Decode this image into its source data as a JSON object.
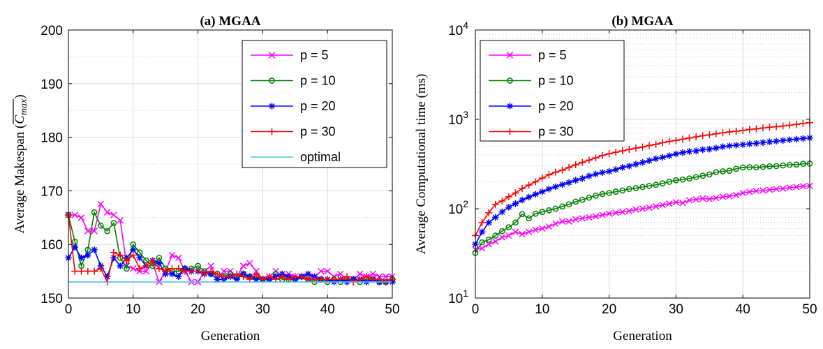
{
  "chart_data": [
    {
      "type": "line",
      "title": "(a) MGAA",
      "xlabel": "Generation",
      "ylabel_prefix": "Average Makespan (",
      "ylabel_math": "C",
      "ylabel_sub": "max",
      "ylabel_suffix": ")",
      "xlim": [
        0,
        50
      ],
      "ylim": [
        150,
        200
      ],
      "x_ticks": [
        0,
        10,
        20,
        30,
        40,
        50
      ],
      "y_ticks": [
        150,
        160,
        170,
        180,
        190,
        200
      ],
      "y_tick_labels": [
        "150",
        "160",
        "170",
        "180",
        "190",
        "200"
      ],
      "grid": "on",
      "legend_position": "top-right",
      "series": [
        {
          "name": "p = 5",
          "color": "#ff00ff",
          "marker": "x",
          "x": [
            0,
            1,
            2,
            3,
            4,
            5,
            6,
            7,
            8,
            9,
            10,
            11,
            12,
            13,
            14,
            15,
            16,
            17,
            18,
            19,
            20,
            21,
            22,
            23,
            24,
            25,
            26,
            27,
            28,
            29,
            30,
            31,
            32,
            33,
            34,
            35,
            36,
            37,
            38,
            39,
            40,
            41,
            42,
            43,
            44,
            45,
            46,
            47,
            48,
            49,
            50
          ],
          "y": [
            165.5,
            165.5,
            165,
            162.5,
            162.5,
            167.5,
            166,
            165.5,
            164.5,
            156,
            155.5,
            155,
            155,
            156.5,
            153,
            155,
            158,
            157.5,
            155,
            153,
            153,
            155,
            156,
            153.5,
            155,
            155,
            154,
            156,
            156.5,
            155,
            153.5,
            154,
            155,
            154,
            154.5,
            154,
            154,
            153.5,
            154,
            155,
            155,
            154,
            154.5,
            153.5,
            153.5,
            154.5,
            154,
            154.5,
            154,
            154,
            154
          ]
        },
        {
          "name": "p = 10",
          "color": "#008000",
          "marker": "o",
          "x": [
            0,
            1,
            2,
            3,
            4,
            5,
            6,
            7,
            8,
            9,
            10,
            11,
            12,
            13,
            14,
            15,
            16,
            17,
            18,
            19,
            20,
            21,
            22,
            23,
            24,
            25,
            26,
            27,
            28,
            29,
            30,
            31,
            32,
            33,
            34,
            35,
            36,
            37,
            38,
            39,
            40,
            41,
            42,
            43,
            44,
            45,
            46,
            47,
            48,
            49,
            50
          ],
          "y": [
            165.5,
            160.5,
            156,
            159,
            166,
            163.5,
            162.5,
            164,
            157.5,
            155.5,
            160,
            158.5,
            157,
            156,
            157.5,
            155.5,
            155,
            155,
            155.5,
            155.5,
            156,
            155,
            154.5,
            154.5,
            154,
            154.5,
            154,
            154.5,
            154,
            154,
            153.5,
            153.5,
            154.5,
            153.5,
            153.5,
            153.5,
            154,
            153.5,
            153,
            153.5,
            153,
            153.5,
            153,
            153.5,
            153.5,
            153,
            153.5,
            153.5,
            153,
            153,
            153.5
          ]
        },
        {
          "name": "p = 20",
          "color": "#0000ff",
          "marker": "*",
          "x": [
            0,
            1,
            2,
            3,
            4,
            5,
            6,
            7,
            8,
            9,
            10,
            11,
            12,
            13,
            14,
            15,
            16,
            17,
            18,
            19,
            20,
            21,
            22,
            23,
            24,
            25,
            26,
            27,
            28,
            29,
            30,
            31,
            32,
            33,
            34,
            35,
            36,
            37,
            38,
            39,
            40,
            41,
            42,
            43,
            44,
            45,
            46,
            47,
            48,
            49,
            50
          ],
          "y": [
            157.5,
            159.5,
            157.5,
            158,
            159,
            156,
            154,
            157.5,
            156,
            157.5,
            159,
            157.5,
            156,
            157,
            156.5,
            154.5,
            154.5,
            154,
            155.5,
            155,
            155,
            154.5,
            154.5,
            153.5,
            153.5,
            154,
            153.5,
            154.5,
            154,
            153.5,
            153.5,
            153.5,
            154,
            154.5,
            154,
            153.5,
            154,
            154.5,
            154,
            153.5,
            153.5,
            153,
            153.5,
            153,
            153.5,
            153.5,
            153,
            153.5,
            153,
            153,
            153
          ]
        },
        {
          "name": "p = 30",
          "color": "#ff0000",
          "marker": "+",
          "x": [
            0,
            1,
            2,
            3,
            4,
            5,
            6,
            7,
            8,
            9,
            10,
            11,
            12,
            13,
            14,
            15,
            16,
            17,
            18,
            19,
            20,
            21,
            22,
            23,
            24,
            25,
            26,
            27,
            28,
            29,
            30,
            31,
            32,
            33,
            34,
            35,
            36,
            37,
            38,
            39,
            40,
            41,
            42,
            43,
            44,
            45,
            46,
            47,
            48,
            49,
            50
          ],
          "y": [
            165.5,
            155,
            155,
            155,
            155,
            155.5,
            153,
            158.5,
            158,
            157,
            158,
            155.5,
            156,
            157,
            155.5,
            155,
            155.5,
            155.5,
            155,
            155,
            155,
            154.5,
            155,
            154.5,
            154,
            154,
            154.5,
            154,
            153.5,
            154.5,
            153.5,
            154,
            153.5,
            154,
            153.5,
            154,
            154,
            153.5,
            153.5,
            153.5,
            153.5,
            153.5,
            153.5,
            154,
            153,
            153.5,
            154,
            153.5,
            153.5,
            153,
            153.5
          ]
        },
        {
          "name": "optimal",
          "color": "#4dbeee",
          "marker": "none",
          "x": [
            0,
            50
          ],
          "y": [
            153,
            153
          ]
        }
      ]
    },
    {
      "type": "line",
      "title": "(b) MGAA",
      "xlabel": "Generation",
      "ylabel": "Average Computational time (ms)",
      "xlim": [
        0,
        50
      ],
      "ylim": [
        10,
        10000
      ],
      "y_scale": "log",
      "x_ticks": [
        0,
        10,
        20,
        30,
        40,
        50
      ],
      "y_ticks": [
        10,
        100,
        1000,
        10000
      ],
      "y_tick_base": "10",
      "y_tick_exponents": [
        "1",
        "2",
        "3",
        "4"
      ],
      "grid": "on",
      "minor_grid": "on",
      "legend_position": "top-left",
      "series": [
        {
          "name": "p = 5",
          "color": "#ff00ff",
          "marker": "x",
          "x": [
            0,
            1,
            2,
            3,
            4,
            5,
            6,
            7,
            8,
            9,
            10,
            11,
            12,
            13,
            14,
            15,
            16,
            17,
            18,
            19,
            20,
            21,
            22,
            23,
            24,
            25,
            26,
            27,
            28,
            29,
            30,
            31,
            32,
            33,
            34,
            35,
            36,
            37,
            38,
            39,
            40,
            41,
            42,
            43,
            44,
            45,
            46,
            47,
            48,
            49,
            50
          ],
          "y": [
            35,
            36,
            40,
            43,
            48,
            50,
            55,
            52,
            55,
            58,
            60,
            63,
            68,
            72,
            72,
            76,
            78,
            80,
            82,
            85,
            88,
            90,
            92,
            94,
            98,
            100,
            103,
            106,
            110,
            114,
            118,
            116,
            124,
            127,
            130,
            128,
            132,
            136,
            138,
            142,
            150,
            154,
            158,
            160,
            163,
            166,
            168,
            172,
            175,
            178,
            180
          ]
        },
        {
          "name": "p = 10",
          "color": "#008000",
          "marker": "o",
          "x": [
            0,
            1,
            2,
            3,
            4,
            5,
            6,
            7,
            8,
            9,
            10,
            11,
            12,
            13,
            14,
            15,
            16,
            17,
            18,
            19,
            20,
            21,
            22,
            23,
            24,
            25,
            26,
            27,
            28,
            29,
            30,
            31,
            32,
            33,
            34,
            35,
            36,
            37,
            38,
            39,
            40,
            41,
            42,
            43,
            44,
            45,
            46,
            47,
            48,
            49,
            50
          ],
          "y": [
            32,
            42,
            45,
            50,
            56,
            62,
            70,
            87,
            78,
            88,
            92,
            96,
            100,
            106,
            112,
            120,
            126,
            133,
            140,
            146,
            150,
            155,
            160,
            166,
            170,
            175,
            180,
            185,
            192,
            200,
            208,
            212,
            218,
            226,
            234,
            242,
            256,
            262,
            266,
            280,
            290,
            292,
            290,
            294,
            298,
            300,
            305,
            310,
            312,
            318,
            320
          ]
        },
        {
          "name": "p = 20",
          "color": "#0000ff",
          "marker": "*",
          "x": [
            0,
            1,
            2,
            3,
            4,
            5,
            6,
            7,
            8,
            9,
            10,
            11,
            12,
            13,
            14,
            15,
            16,
            17,
            18,
            19,
            20,
            21,
            22,
            23,
            24,
            25,
            26,
            27,
            28,
            29,
            30,
            31,
            32,
            33,
            34,
            35,
            36,
            37,
            38,
            39,
            40,
            41,
            42,
            43,
            44,
            45,
            46,
            47,
            48,
            49,
            50
          ],
          "y": [
            40,
            55,
            70,
            80,
            92,
            104,
            114,
            125,
            135,
            145,
            155,
            166,
            176,
            186,
            196,
            208,
            218,
            232,
            244,
            254,
            262,
            274,
            290,
            300,
            315,
            330,
            345,
            362,
            376,
            392,
            410,
            424,
            438,
            444,
            458,
            464,
            478,
            494,
            506,
            514,
            522,
            532,
            540,
            550,
            560,
            570,
            580,
            590,
            600,
            610,
            620
          ]
        },
        {
          "name": "p = 30",
          "color": "#ff0000",
          "marker": "+",
          "x": [
            0,
            1,
            2,
            3,
            4,
            5,
            6,
            7,
            8,
            9,
            10,
            11,
            12,
            13,
            14,
            15,
            16,
            17,
            18,
            19,
            20,
            21,
            22,
            23,
            24,
            25,
            26,
            27,
            28,
            29,
            30,
            31,
            32,
            33,
            34,
            35,
            36,
            37,
            38,
            39,
            40,
            41,
            42,
            43,
            44,
            45,
            46,
            47,
            48,
            49,
            50
          ],
          "y": [
            50,
            70,
            90,
            112,
            122,
            136,
            150,
            168,
            184,
            200,
            220,
            240,
            256,
            270,
            290,
            310,
            330,
            350,
            370,
            394,
            412,
            428,
            444,
            460,
            476,
            490,
            510,
            526,
            548,
            566,
            582,
            600,
            618,
            636,
            656,
            670,
            690,
            708,
            724,
            736,
            752,
            770,
            782,
            800,
            816,
            828,
            842,
            860,
            880,
            900,
            920
          ]
        }
      ]
    }
  ]
}
